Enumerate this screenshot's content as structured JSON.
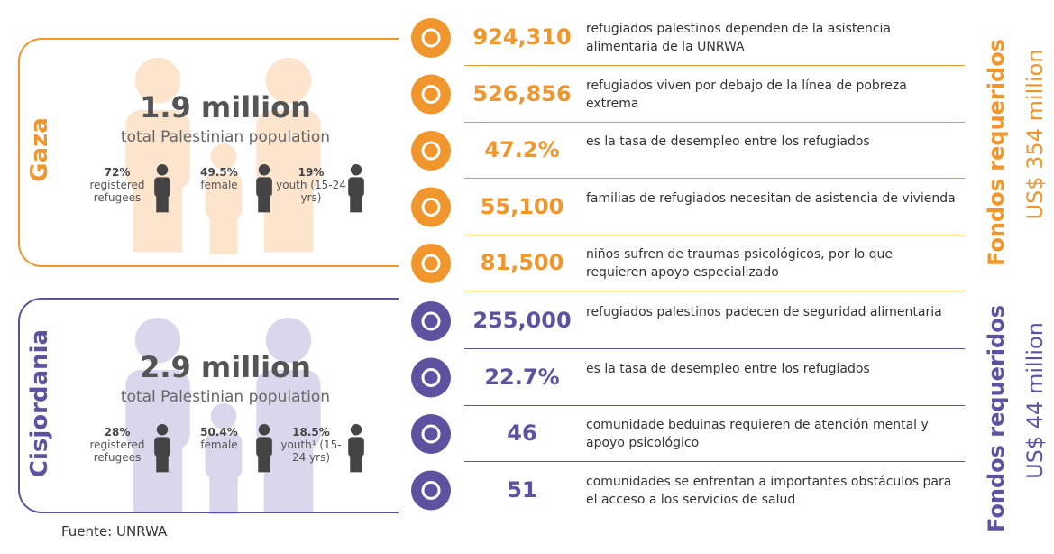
{
  "regions": [
    {
      "name": "Gaza",
      "population": "1.9 million",
      "population_label": "total Palestinian population",
      "stats": [
        {
          "value": "72%",
          "label": "registered refugees"
        },
        {
          "value": "49.5%",
          "label": "female"
        },
        {
          "value": "19%",
          "label": "youth (15-24 yrs)"
        }
      ],
      "funding_label": "Fondos requeridos",
      "funding": "US$ 354 million",
      "items": [
        {
          "value": "924,310",
          "text": "refugiados palestinos dependen de la asistencia alimentaria de la UNRWA"
        },
        {
          "value": "526,856",
          "text": "refugiados viven por debajo de la línea de pobreza extrema"
        },
        {
          "value": "47.2%",
          "text": "es la tasa de desempleo entre los refugiados"
        },
        {
          "value": "55,100",
          "text": "familias de refugiados necesitan de asistencia de vivienda"
        },
        {
          "value": "81,500",
          "text": "niños sufren de traumas psicológicos, por lo que requieren apoyo especializado"
        }
      ]
    },
    {
      "name": "Cisjordania",
      "population": "2.9 million",
      "population_label": "total Palestinian population",
      "stats": [
        {
          "value": "28%",
          "label": "registered refugees"
        },
        {
          "value": "50.4%",
          "label": "female"
        },
        {
          "value": "18.5%",
          "label": "youth¹ (15-24 yrs)"
        }
      ],
      "funding_label": "Fondos requeridos",
      "funding": "US$ 44 million",
      "items": [
        {
          "value": "255,000",
          "text": "refugiados palestinos padecen de seguridad alimentaria"
        },
        {
          "value": "22.7%",
          "text": "es la tasa de desempleo entre los refugiados"
        },
        {
          "value": "46",
          "text": "comunidade beduinas requieren de atención mental y apoyo psicológico"
        },
        {
          "value": "51",
          "text": "comunidades se enfrentan a importantes obstáculos para el acceso a los servicios de salud"
        }
      ]
    }
  ],
  "source": "Fuente: UNRWA"
}
